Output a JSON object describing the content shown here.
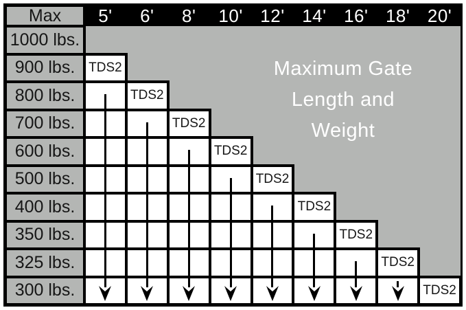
{
  "labels": {
    "corner": "Max",
    "cell_label": "TDS2"
  },
  "title": {
    "lines": [
      "Maximum Gate",
      "Length and",
      "Weight"
    ]
  },
  "colors": {
    "background_gray": "#b4b6b4",
    "header_bar": "#000000",
    "cell_white": "#ffffff",
    "grid_border": "#000000",
    "header_text": "#ffffff",
    "title_text": "#ffffff",
    "label_text": "#161616"
  },
  "chart_data": {
    "type": "table",
    "title": "Maximum Gate Length and Weight",
    "columns": [
      "5'",
      "6'",
      "8'",
      "10'",
      "12'",
      "14'",
      "16'",
      "18'",
      "20'"
    ],
    "rows": [
      "1000 lbs.",
      "900 lbs.",
      "800 lbs.",
      "700 lbs.",
      "600 lbs.",
      "500 lbs.",
      "400 lbs.",
      "350 lbs.",
      "325 lbs.",
      "300 lbs."
    ],
    "tds2_start_row": [
      1,
      2,
      3,
      4,
      5,
      6,
      7,
      8,
      9
    ],
    "max_weight_by_length": [
      {
        "gate_length_ft": 5,
        "max_weight_lbs": 900
      },
      {
        "gate_length_ft": 6,
        "max_weight_lbs": 800
      },
      {
        "gate_length_ft": 8,
        "max_weight_lbs": 700
      },
      {
        "gate_length_ft": 10,
        "max_weight_lbs": 600
      },
      {
        "gate_length_ft": 12,
        "max_weight_lbs": 500
      },
      {
        "gate_length_ft": 14,
        "max_weight_lbs": 400
      },
      {
        "gate_length_ft": 16,
        "max_weight_lbs": 350
      },
      {
        "gate_length_ft": 18,
        "max_weight_lbs": 325
      },
      {
        "gate_length_ft": 20,
        "max_weight_lbs": 300
      }
    ],
    "legend": "White stair-stepped cells marked TDS2 with down arrows indicate the valid weight range per gate length",
    "grid": true
  }
}
